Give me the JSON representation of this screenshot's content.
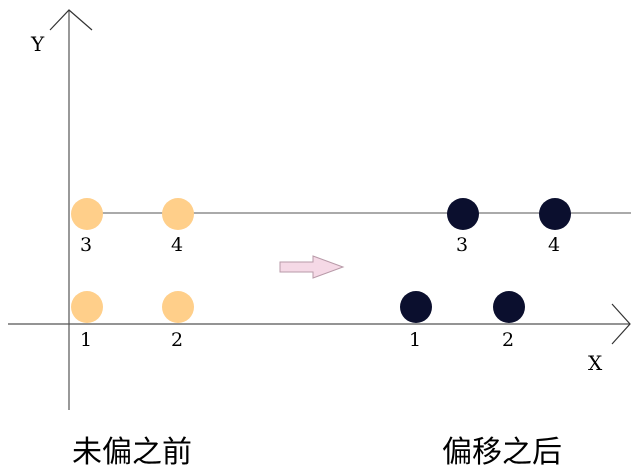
{
  "diagram": {
    "axes": {
      "x_label": "X",
      "y_label": "Y"
    },
    "before": {
      "caption": "未偏之前",
      "color": "#ffcf8a",
      "points": [
        {
          "label": "3"
        },
        {
          "label": "4"
        },
        {
          "label": "1"
        },
        {
          "label": "2"
        }
      ]
    },
    "after": {
      "caption": "偏移之后",
      "color": "#0b0f2e",
      "points": [
        {
          "label": "3"
        },
        {
          "label": "4"
        },
        {
          "label": "1"
        },
        {
          "label": "2"
        }
      ]
    },
    "arrow_color": "#f5d9e6"
  }
}
